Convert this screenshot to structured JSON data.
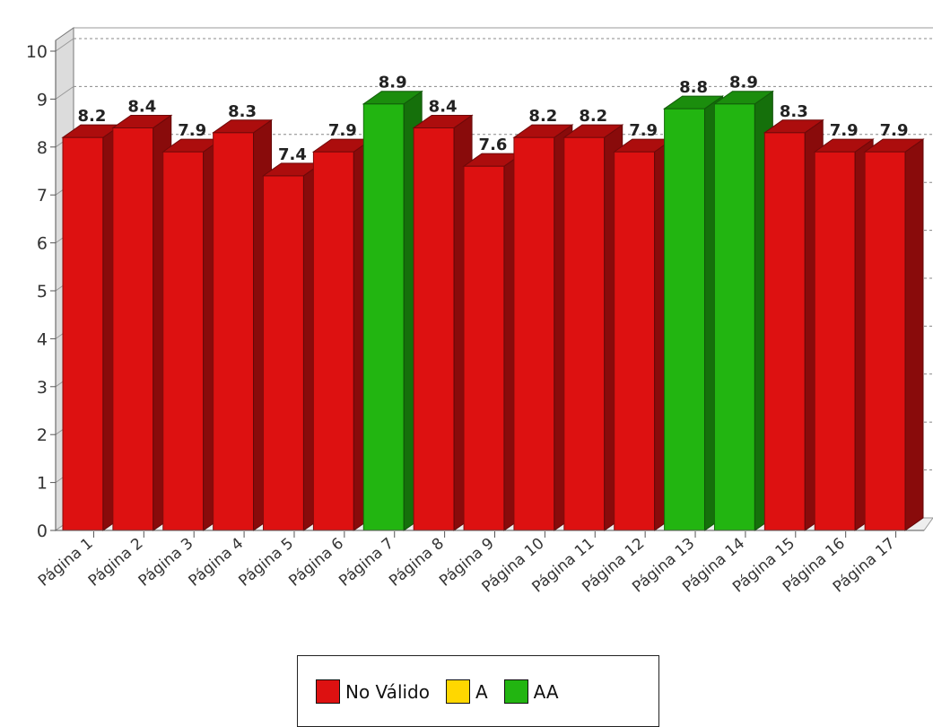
{
  "chart_data": {
    "type": "bar",
    "categories": [
      "Página 1",
      "Página 2",
      "Página 3",
      "Página 4",
      "Página 5",
      "Página 6",
      "Página 7",
      "Página 8",
      "Página 9",
      "Página 10",
      "Página 11",
      "Página 12",
      "Página 13",
      "Página 14",
      "Página 15",
      "Página 16",
      "Página 17"
    ],
    "values": [
      8.2,
      8.4,
      7.9,
      8.3,
      7.4,
      7.9,
      8.9,
      8.4,
      7.6,
      8.2,
      8.2,
      7.9,
      8.8,
      8.9,
      8.3,
      7.9,
      7.9
    ],
    "data_labels": [
      "8.2",
      "8.4",
      "7.9",
      "8.3",
      "7.4",
      "7.9",
      "8.9",
      "8.4",
      "7.6",
      "8.2",
      "8.2",
      "7.9",
      "8.8",
      "8.9",
      "8.3",
      "7.9",
      "7.9"
    ],
    "bar_classes": [
      "No Válido",
      "No Válido",
      "No Válido",
      "No Válido",
      "No Válido",
      "No Válido",
      "AA",
      "No Válido",
      "No Válido",
      "No Válido",
      "No Válido",
      "No Válido",
      "AA",
      "AA",
      "No Válido",
      "No Válido",
      "No Válido"
    ],
    "ylim": [
      0,
      10
    ],
    "yticks": [
      "0",
      "1",
      "2",
      "3",
      "4",
      "5",
      "6",
      "7",
      "8",
      "9",
      "10"
    ],
    "grid": true,
    "style": "3d",
    "legend_position": "bottom-center",
    "legend": [
      {
        "label": "No Válido",
        "color": "#dd1111"
      },
      {
        "label": "A",
        "color": "#ffd700"
      },
      {
        "label": "AA",
        "color": "#22b511"
      }
    ],
    "colors": {
      "No Válido": "#dd1111",
      "A": "#ffd700",
      "AA": "#22b511"
    }
  }
}
